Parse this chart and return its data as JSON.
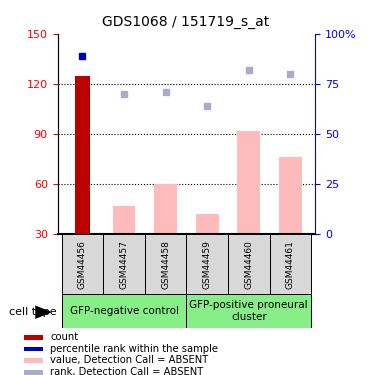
{
  "title": "GDS1068 / 151719_s_at",
  "samples": [
    "GSM44456",
    "GSM44457",
    "GSM44458",
    "GSM44459",
    "GSM44460",
    "GSM44461"
  ],
  "count_values": [
    125,
    0,
    0,
    0,
    0,
    0
  ],
  "count_color": "#bb0000",
  "percentile_values": [
    89,
    0,
    0,
    0,
    0,
    0
  ],
  "percentile_color": "#0000bb",
  "value_absent": [
    0,
    47,
    60,
    42,
    92,
    76
  ],
  "value_absent_color": "#ffbbbb",
  "rank_absent": [
    0,
    70,
    71,
    64,
    82,
    80
  ],
  "rank_absent_color": "#aaaacc",
  "ylim_left": [
    30,
    150
  ],
  "ylim_right": [
    0,
    100
  ],
  "yticks_left": [
    30,
    60,
    90,
    120,
    150
  ],
  "yticks_right": [
    0,
    25,
    50,
    75,
    100
  ],
  "group1_label": "GFP-negative control",
  "group2_label": "GFP-positive proneural\ncluster",
  "group_color": "#88ee88",
  "cell_type_label": "cell type",
  "legend_items": [
    {
      "label": "count",
      "color": "#bb0000"
    },
    {
      "label": "percentile rank within the sample",
      "color": "#0000bb"
    },
    {
      "label": "value, Detection Call = ABSENT",
      "color": "#ffbbbb"
    },
    {
      "label": "rank, Detection Call = ABSENT",
      "color": "#aaaacc"
    }
  ],
  "bg_color": "#d8d8d8"
}
